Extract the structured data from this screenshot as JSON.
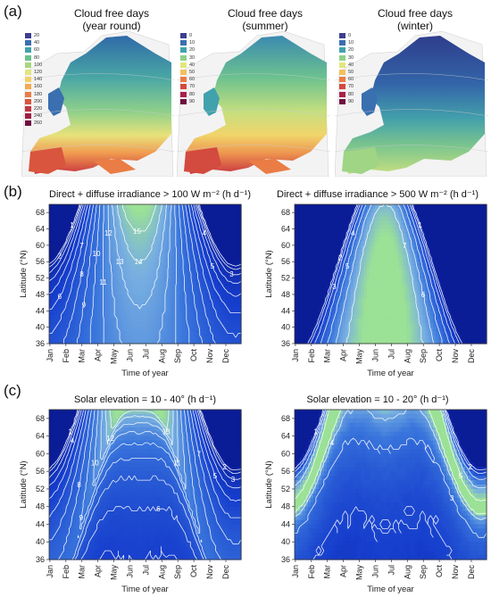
{
  "figure": {
    "panel_a_label": "(a)",
    "panel_b_label": "(b)",
    "panel_c_label": "(c)"
  },
  "maps": [
    {
      "title_line1": "Cloud free days",
      "title_line2": "(year round)",
      "legend": [
        {
          "label": "20",
          "color": "#3c3f8f"
        },
        {
          "label": "40",
          "color": "#3a6fb0"
        },
        {
          "label": "60",
          "color": "#41a2ad"
        },
        {
          "label": "80",
          "color": "#6cc18f"
        },
        {
          "label": "100",
          "color": "#a8d77f"
        },
        {
          "label": "120",
          "color": "#e2e67e"
        },
        {
          "label": "140",
          "color": "#f4d166"
        },
        {
          "label": "160",
          "color": "#f3aa55"
        },
        {
          "label": "180",
          "color": "#ea7d45"
        },
        {
          "label": "200",
          "color": "#d9553d"
        },
        {
          "label": "220",
          "color": "#c03641"
        },
        {
          "label": "240",
          "color": "#9c1f45"
        },
        {
          "label": "260",
          "color": "#6f0f3f"
        }
      ]
    },
    {
      "title_line1": "Cloud free days",
      "title_line2": "(summer)",
      "legend": [
        {
          "label": "0",
          "color": "#3c3f8f"
        },
        {
          "label": "10",
          "color": "#3a6fb0"
        },
        {
          "label": "20",
          "color": "#41a2ad"
        },
        {
          "label": "30",
          "color": "#8fd08a"
        },
        {
          "label": "40",
          "color": "#e2e67e"
        },
        {
          "label": "50",
          "color": "#f4c05e"
        },
        {
          "label": "60",
          "color": "#ea7d45"
        },
        {
          "label": "70",
          "color": "#d34a3e"
        },
        {
          "label": "80",
          "color": "#a8214a"
        },
        {
          "label": "90",
          "color": "#6f0f3f"
        }
      ]
    },
    {
      "title_line1": "Cloud free days",
      "title_line2": "(winter)",
      "legend": [
        {
          "label": "0",
          "color": "#3c3f8f"
        },
        {
          "label": "10",
          "color": "#3a6fb0"
        },
        {
          "label": "20",
          "color": "#41a2ad"
        },
        {
          "label": "30",
          "color": "#8fd08a"
        },
        {
          "label": "40",
          "color": "#e2e67e"
        },
        {
          "label": "50",
          "color": "#f4c05e"
        },
        {
          "label": "60",
          "color": "#ea7d45"
        },
        {
          "label": "70",
          "color": "#d34a3e"
        },
        {
          "label": "80",
          "color": "#a8214a"
        },
        {
          "label": "90",
          "color": "#6f0f3f"
        }
      ]
    }
  ],
  "chart_data": [
    {
      "type": "heatmap",
      "title": "Direct + diffuse irradiance > 100 W m⁻² (h d⁻¹)",
      "xlabel": "Time of year",
      "ylabel": "Latitude (°N)",
      "categories": [
        "Jan",
        "Feb",
        "Mar",
        "Apr",
        "May",
        "Jun",
        "Jul",
        "Aug",
        "Sep",
        "Oct",
        "Nov",
        "Dec"
      ],
      "y_ticks": [
        36,
        40,
        44,
        48,
        52,
        56,
        60,
        64,
        68
      ],
      "ylim": [
        36,
        70
      ],
      "contour_levels": [
        1,
        2,
        3,
        4,
        5,
        6,
        7,
        8,
        9,
        10,
        11,
        12,
        13,
        14,
        15
      ]
    },
    {
      "type": "heatmap",
      "title": "Direct + diffuse irradiance > 500 W m⁻² (h d⁻¹)",
      "xlabel": "Time of year",
      "ylabel": "Latitude (°N)",
      "categories": [
        "Jan",
        "Feb",
        "Mar",
        "Apr",
        "May",
        "Jun",
        "Jul",
        "Aug",
        "Sep",
        "Oct",
        "Nov",
        "Dec"
      ],
      "y_ticks": [
        36,
        40,
        44,
        48,
        52,
        56,
        60,
        64,
        68
      ],
      "ylim": [
        36,
        70
      ],
      "contour_levels": [
        1,
        2,
        3,
        4,
        5,
        6,
        7
      ]
    },
    {
      "type": "heatmap",
      "title": "Solar elevation = 10 - 40° (h d⁻¹)",
      "xlabel": "Time of year",
      "ylabel": "Latitude (°N)",
      "categories": [
        "Jan",
        "Feb",
        "Mar",
        "Apr",
        "May",
        "Jun",
        "Jul",
        "Aug",
        "Sep",
        "Oct",
        "Nov",
        "Dec"
      ],
      "y_ticks": [
        36,
        40,
        44,
        48,
        52,
        56,
        60,
        64,
        68
      ],
      "ylim": [
        36,
        70
      ],
      "contour_levels": [
        1,
        2,
        3,
        4,
        5,
        6,
        7,
        8,
        9,
        10,
        11,
        12,
        13
      ]
    },
    {
      "type": "heatmap",
      "title": "Solar elevation = 10 - 20° (h d⁻¹)",
      "xlabel": "Time of year",
      "ylabel": "Latitude (°N)",
      "categories": [
        "Jan",
        "Feb",
        "Mar",
        "Apr",
        "May",
        "Jun",
        "Jul",
        "Aug",
        "Sep",
        "Oct",
        "Nov",
        "Dec"
      ],
      "y_ticks": [
        36,
        40,
        44,
        48,
        52,
        56,
        60,
        64,
        68
      ],
      "ylim": [
        36,
        70
      ],
      "contour_levels": [
        1,
        2,
        3,
        4,
        5
      ]
    }
  ]
}
